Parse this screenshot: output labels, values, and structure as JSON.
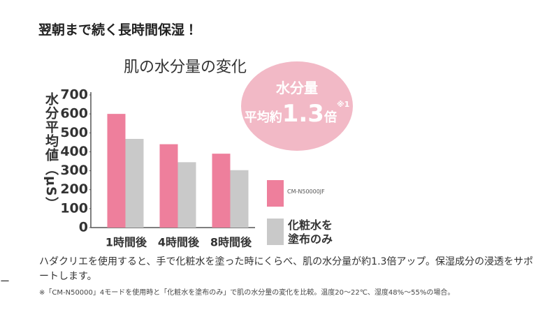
{
  "heading": "翌朝まで続く長時間保湿！",
  "chart_data": {
    "type": "bar",
    "title": "肌の水分量の変化",
    "y_label": "水分平均値（μS）",
    "categories": [
      "1時間後",
      "4時間後",
      "8時間後"
    ],
    "series": [
      {
        "name": "CM-N50000JF",
        "color": "#ee7f9c",
        "values": [
          600,
          440,
          390
        ]
      },
      {
        "name": "化粧水を塗布のみ",
        "color": "#c9c9c9",
        "values": [
          468,
          345,
          303
        ]
      }
    ],
    "ylim": [
      0,
      700
    ],
    "yticks": [
      0,
      100,
      200,
      300,
      400,
      500,
      600,
      700
    ],
    "badge": {
      "line1": "水分量",
      "prefix": "平均約",
      "ratio": 1.3,
      "suffix": "倍",
      "note": "※1"
    }
  },
  "description": "ハダクリエを使用すると、手で化粧水を塗った時にくらべ、肌の水分量が約1.3倍アップ。保湿成分の浸透をサポートします。",
  "footnote": "※「CM-N50000」4モードを使用時と「化粧水を塗布のみ」で肌の水分量の変化を比較。温度20～22℃、湿度48%～55%の場合。",
  "side_fragment": "ー"
}
